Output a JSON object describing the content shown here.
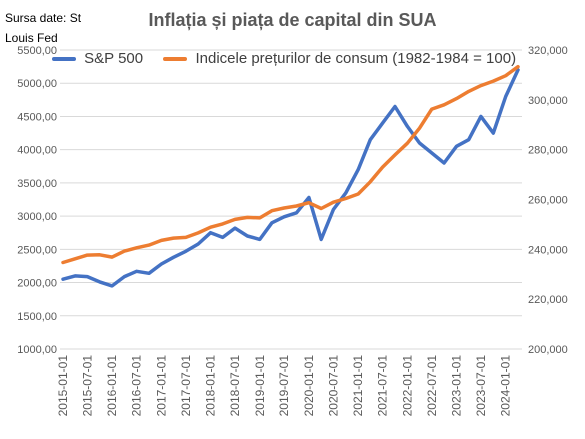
{
  "source_note": "Sursa date: St Louis Fed",
  "chart_data": {
    "type": "line",
    "title": "Inflația și piața de capital din SUA",
    "x": [
      "2015-01-01",
      "2015-04-01",
      "2015-07-01",
      "2015-10-01",
      "2016-01-01",
      "2016-04-01",
      "2016-07-01",
      "2016-10-01",
      "2017-01-01",
      "2017-04-01",
      "2017-07-01",
      "2017-10-01",
      "2018-01-01",
      "2018-04-01",
      "2018-07-01",
      "2018-10-01",
      "2019-01-01",
      "2019-04-01",
      "2019-07-01",
      "2019-10-01",
      "2020-01-01",
      "2020-04-01",
      "2020-07-01",
      "2020-10-01",
      "2021-01-01",
      "2021-04-01",
      "2021-07-01",
      "2021-10-01",
      "2022-01-01",
      "2022-04-01",
      "2022-07-01",
      "2022-10-01",
      "2023-01-01",
      "2023-04-01",
      "2023-07-01",
      "2023-10-01",
      "2024-01-01",
      "2024-04-01"
    ],
    "x_tick_labels": [
      "2015-01-01",
      "2015-07-01",
      "2016-01-01",
      "2016-07-01",
      "2017-01-01",
      "2017-07-01",
      "2018-01-01",
      "2018-07-01",
      "2019-01-01",
      "2019-07-01",
      "2020-01-01",
      "2020-07-01",
      "2021-01-01",
      "2021-07-01",
      "2022-01-01",
      "2022-07-01",
      "2023-01-01",
      "2023-07-01",
      "2024-01-01"
    ],
    "y_left": {
      "ylim": [
        1000,
        5500
      ],
      "ticks": [
        "1000,00",
        "1500,00",
        "2000,00",
        "2500,00",
        "3000,00",
        "3500,00",
        "4000,00",
        "4500,00",
        "5000,00",
        "5500,00"
      ]
    },
    "y_right": {
      "ylim": [
        200000,
        320000
      ],
      "ticks": [
        "200,000",
        "220,000",
        "240,000",
        "260,000",
        "280,000",
        "300,000",
        "320,000"
      ]
    },
    "series": [
      {
        "name": "S&P 500",
        "axis": "left",
        "color": "#4472C4",
        "values": [
          2050,
          2100,
          2090,
          2010,
          1950,
          2090,
          2170,
          2140,
          2280,
          2380,
          2470,
          2580,
          2750,
          2680,
          2820,
          2700,
          2650,
          2900,
          2990,
          3050,
          3280,
          2650,
          3100,
          3350,
          3700,
          4150,
          4400,
          4650,
          4350,
          4100,
          3950,
          3800,
          4050,
          4150,
          4500,
          4250,
          4800,
          5200
        ]
      },
      {
        "name": "Indicele prețurilor de consum (1982-1984 = 100)",
        "axis": "right",
        "color": "#ED7D31",
        "values": [
          234700,
          236200,
          237700,
          237800,
          236900,
          239300,
          240600,
          241700,
          243600,
          244500,
          244800,
          246600,
          248900,
          250200,
          252000,
          252800,
          252600,
          255500,
          256600,
          257400,
          258700,
          256400,
          258900,
          260400,
          262200,
          267100,
          273000,
          277900,
          282600,
          288600,
          296300,
          298000,
          300500,
          303400,
          305700,
          307500,
          309700,
          313300
        ]
      }
    ]
  }
}
